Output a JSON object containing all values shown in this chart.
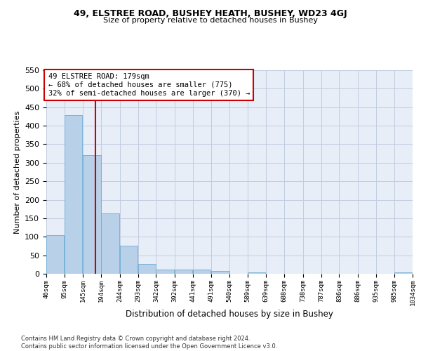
{
  "title": "49, ELSTREE ROAD, BUSHEY HEATH, BUSHEY, WD23 4GJ",
  "subtitle": "Size of property relative to detached houses in Bushey",
  "xlabel": "Distribution of detached houses by size in Bushey",
  "ylabel": "Number of detached properties",
  "bar_color": "#b8d0e8",
  "bar_edge_color": "#6baed6",
  "background_color": "#e8eef8",
  "grid_color": "#c0cce0",
  "vline_x": 179,
  "vline_color": "#cc0000",
  "annotation_text": "49 ELSTREE ROAD: 179sqm\n← 68% of detached houses are smaller (775)\n32% of semi-detached houses are larger (370) →",
  "annotation_box_color": "#cc0000",
  "bins_left": [
    46,
    95,
    145,
    194,
    244,
    293,
    342,
    392,
    441,
    491,
    540,
    589,
    639,
    688,
    738,
    787,
    836,
    886,
    935,
    985
  ],
  "bin_width": 49,
  "bar_heights": [
    105,
    428,
    320,
    163,
    75,
    27,
    11,
    12,
    11,
    8,
    0,
    4,
    0,
    0,
    0,
    0,
    0,
    0,
    0,
    3
  ],
  "ylim": [
    0,
    550
  ],
  "yticks": [
    0,
    50,
    100,
    150,
    200,
    250,
    300,
    350,
    400,
    450,
    500,
    550
  ],
  "footer_text": "Contains HM Land Registry data © Crown copyright and database right 2024.\nContains public sector information licensed under the Open Government Licence v3.0.",
  "tick_labels": [
    "46sqm",
    "95sqm",
    "145sqm",
    "194sqm",
    "244sqm",
    "293sqm",
    "342sqm",
    "392sqm",
    "441sqm",
    "491sqm",
    "540sqm",
    "589sqm",
    "639sqm",
    "688sqm",
    "738sqm",
    "787sqm",
    "836sqm",
    "886sqm",
    "935sqm",
    "985sqm",
    "1034sqm"
  ]
}
